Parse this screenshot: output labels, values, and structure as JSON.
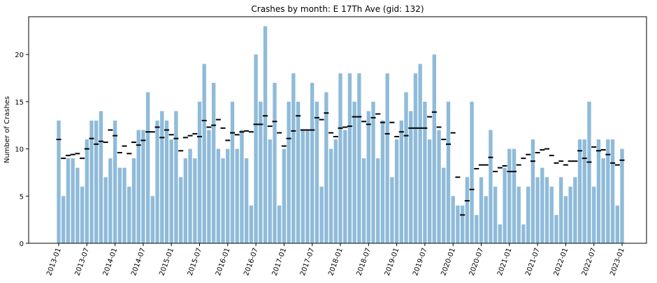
{
  "chart_data": {
    "type": "bar",
    "title": "Crashes by month: E 17Th Ave (gid: 132)",
    "y_label": "Number of Crashes",
    "categories": [
      "2013-01",
      null,
      null,
      null,
      null,
      null,
      "2013-07",
      null,
      null,
      null,
      null,
      null,
      "2014-01",
      null,
      null,
      null,
      null,
      null,
      "2014-07",
      null,
      null,
      null,
      null,
      null,
      "2015-01",
      null,
      null,
      null,
      null,
      null,
      "2015-07",
      null,
      null,
      null,
      null,
      null,
      "2016-01",
      null,
      null,
      null,
      null,
      null,
      "2016-07",
      null,
      null,
      null,
      null,
      null,
      "2017-01",
      null,
      null,
      null,
      null,
      null,
      "2017-07",
      null,
      null,
      null,
      null,
      null,
      "2018-01",
      null,
      null,
      null,
      null,
      null,
      "2018-07",
      null,
      null,
      null,
      null,
      null,
      "2019-01",
      null,
      null,
      null,
      null,
      null,
      "2019-07",
      null,
      null,
      null,
      null,
      null,
      "2020-01",
      null,
      null,
      null,
      null,
      null,
      "2020-07",
      null,
      null,
      null,
      null,
      null,
      "2021-01",
      null,
      null,
      null,
      null,
      null,
      "2021-07",
      null,
      null,
      null,
      null,
      null,
      "2022-01",
      null,
      null,
      null,
      null,
      null,
      "2022-07",
      null,
      null,
      null,
      null,
      null,
      "2023-01"
    ],
    "series": [
      {
        "color": "#8fbbd9",
        "values": [
          13,
          5,
          9,
          9,
          8,
          6,
          11,
          13,
          13,
          14,
          7,
          9,
          13,
          8,
          8,
          6,
          9,
          12,
          12,
          16,
          5,
          13,
          14,
          13,
          11,
          14,
          7,
          9,
          10,
          9,
          15,
          19,
          12,
          17,
          10,
          9,
          10,
          15,
          10,
          12,
          9,
          4,
          20,
          15,
          23,
          11,
          17,
          4,
          10,
          15,
          18,
          15,
          12,
          12,
          17,
          15,
          6,
          16,
          10,
          11,
          18,
          12,
          18,
          15,
          18,
          9,
          14,
          15,
          9,
          13,
          18,
          7,
          11,
          13,
          16,
          14,
          18,
          19,
          15,
          11,
          20,
          12,
          8,
          15,
          5,
          4,
          4,
          7,
          15,
          3,
          7,
          5,
          12,
          6,
          2,
          8,
          10,
          10,
          6,
          2,
          6,
          11,
          7,
          8,
          7,
          6,
          3,
          7,
          5,
          6,
          7,
          11,
          11,
          15,
          6,
          11,
          9,
          11,
          11,
          4,
          10
        ]
      },
      {
        "color": "#000000",
        "marker": "dash",
        "values": [
          11,
          9,
          9.3,
          9.4,
          9.5,
          9,
          10,
          11.1,
          10.5,
          10.8,
          10.7,
          12,
          11.4,
          9.6,
          10.3,
          9.5,
          10.7,
          10.4,
          10.9,
          11.8,
          11.8,
          12.3,
          11.2,
          12,
          11.5,
          11.1,
          9.8,
          11.2,
          11.4,
          11.6,
          11.3,
          13,
          12.3,
          12.5,
          13.1,
          12.2,
          10.9,
          11.7,
          11.5,
          11.8,
          11.9,
          11.8,
          12.6,
          12.6,
          13.5,
          12.4,
          12.9,
          11.7,
          10.3,
          11.1,
          11.9,
          13.5,
          12,
          12,
          12,
          13.3,
          13.1,
          13.8,
          11.7,
          11.3,
          12.2,
          12.3,
          12.4,
          13.4,
          13.4,
          12.9,
          12.6,
          13.3,
          13.7,
          12.8,
          11.6,
          12.8,
          11.3,
          11.8,
          11.4,
          12.2,
          12.2,
          12.2,
          12.2,
          13.4,
          13.9,
          12.3,
          11,
          10.5,
          11.7,
          7,
          3,
          4.5,
          5.7,
          7.9,
          8.3,
          8.3,
          9.1,
          7.6,
          8,
          8.2,
          7.6,
          7.6,
          8.3,
          9,
          9.4,
          8.7,
          9.6,
          9.9,
          10,
          9.3,
          8.5,
          8.7,
          8.3,
          8.7,
          8.7,
          9.8,
          9,
          8.6,
          10.2,
          9.8,
          9.9,
          9.4,
          8.5,
          8.3,
          8.8
        ]
      }
    ],
    "ylim": [
      0,
      24
    ],
    "yticks": [
      0,
      5,
      10,
      15,
      20
    ]
  }
}
